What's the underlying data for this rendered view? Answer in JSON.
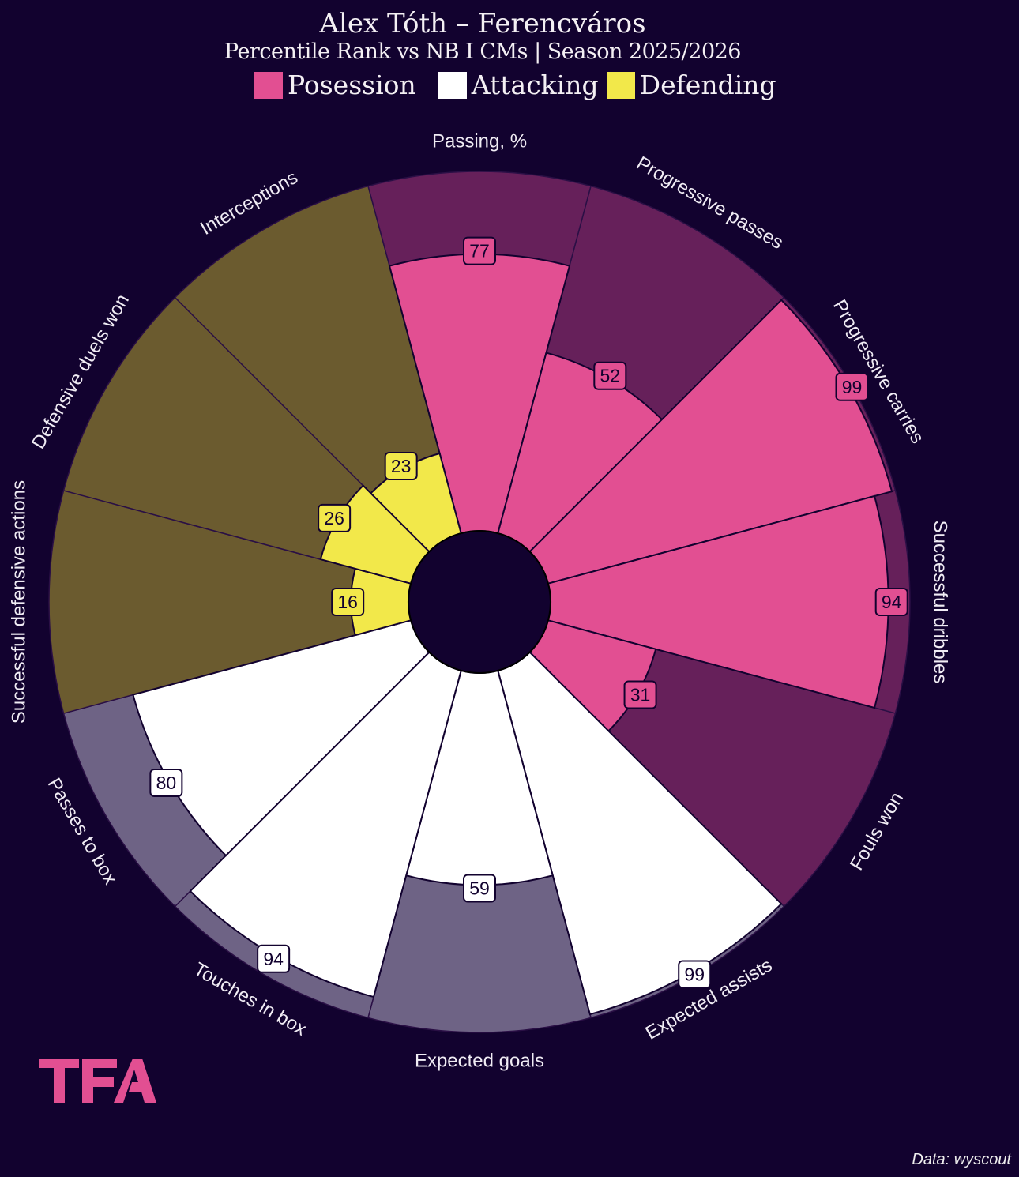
{
  "title": "Alex Tóth – Ferencváros",
  "subtitle": "Percentile Rank vs NB I CMs | Season 2025/2026",
  "legend": [
    {
      "label": "Posession",
      "color": "#e24f92"
    },
    {
      "label": "Attacking",
      "color": "#ffffff"
    },
    {
      "label": "Defending",
      "color": "#f2e84a"
    }
  ],
  "logo_text": "TFA",
  "source": "Data: wyscout",
  "colors": {
    "background": "#12022f",
    "posession_bg": "#66205a",
    "attacking_bg": "#6e6385",
    "defending_bg": "#6b5b2f"
  },
  "chart_data": {
    "type": "pizza",
    "title": "Alex Tóth – Ferencváros",
    "subtitle": "Percentile Rank vs NB I CMs | Season 2025/2026",
    "range": [
      0,
      100
    ],
    "categories": [
      "Passing, %",
      "Progressive passes",
      "Progressive carries",
      "Successful dribbles",
      "Fouls won",
      "Expected assists",
      "Expected goals",
      "Touches in box",
      "Passes to box",
      "Successful defensive actions",
      "Defensive duels won",
      "Interceptions"
    ],
    "groups": [
      "Posession",
      "Posession",
      "Posession",
      "Posession",
      "Posession",
      "Attacking",
      "Attacking",
      "Attacking",
      "Attacking",
      "Defending",
      "Defending",
      "Defending"
    ],
    "values": [
      77,
      52,
      99,
      94,
      31,
      99,
      59,
      94,
      80,
      16,
      26,
      23
    ],
    "legend_position": "top"
  }
}
